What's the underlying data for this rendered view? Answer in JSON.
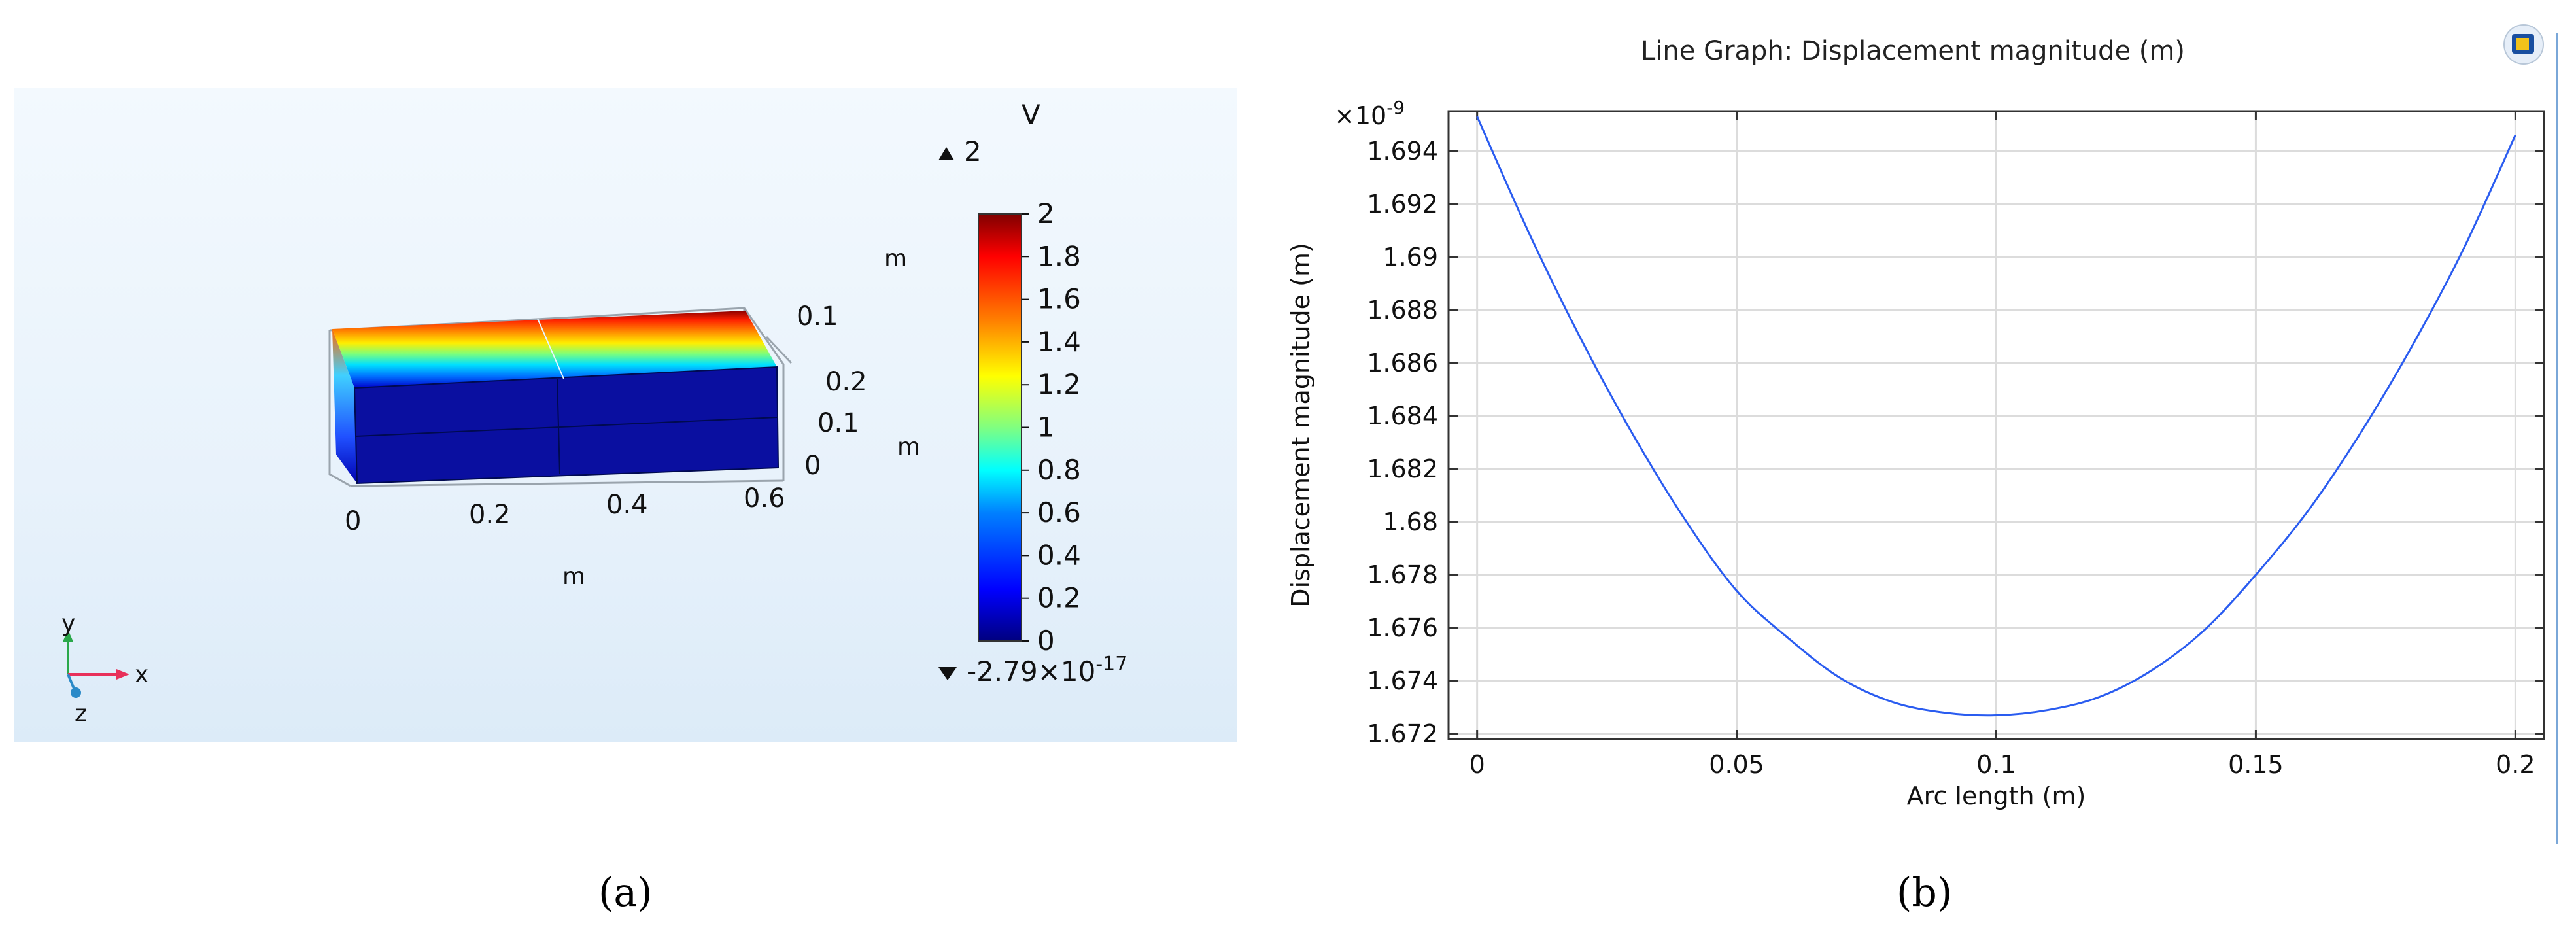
{
  "panel_a": {
    "caption": "(a)",
    "colorbar": {
      "unit": "V",
      "max_marker": "2",
      "min_marker": "-2.79×10",
      "min_marker_exp": "-17",
      "ticks": [
        "2",
        "1.8",
        "1.6",
        "1.4",
        "1.2",
        "1",
        "0.8",
        "0.6",
        "0.4",
        "0.2",
        "0"
      ],
      "colors": [
        "#00007f",
        "#0000ff",
        "#0080ff",
        "#00ffff",
        "#80ff80",
        "#ffff00",
        "#ff8000",
        "#ff0000",
        "#7f0000"
      ]
    },
    "axes_3d": {
      "x_ticks": [
        "0",
        "0.2",
        "0.4",
        "0.6"
      ],
      "x_unit": "m",
      "y_ticks": [
        "0",
        "0.1"
      ],
      "y_unit": "m",
      "z_ticks": [
        "0.1",
        "0.2"
      ],
      "z_unit": "m"
    },
    "triad": {
      "x": "x",
      "y": "y",
      "z": "z"
    }
  },
  "panel_b": {
    "caption": "(b)",
    "title": "Line Graph: Displacement magnitude (m)",
    "logo_icon": "app-logo-icon"
  },
  "chart_data": {
    "type": "line",
    "title": "Line Graph: Displacement magnitude (m)",
    "xlabel": "Arc length (m)",
    "ylabel": "Displacement magnitude (m)",
    "y_multiplier": "×10",
    "y_multiplier_exp": "-9",
    "xlim": [
      -0.0055,
      0.2055
    ],
    "ylim": [
      1.6718,
      1.6955
    ],
    "x_ticks": [
      0,
      0.05,
      0.1,
      0.15,
      0.2
    ],
    "x_tick_labels": [
      "0",
      "0.05",
      "0.1",
      "0.15",
      "0.2"
    ],
    "y_ticks": [
      1.672,
      1.674,
      1.676,
      1.678,
      1.68,
      1.682,
      1.684,
      1.686,
      1.688,
      1.69,
      1.692,
      1.694
    ],
    "y_tick_labels": [
      "1.672",
      "1.674",
      "1.676",
      "1.678",
      "1.68",
      "1.682",
      "1.684",
      "1.686",
      "1.688",
      "1.69",
      "1.692",
      "1.694"
    ],
    "grid": true,
    "series": [
      {
        "color": "#2a5cf0",
        "x": [
          0,
          0.01,
          0.02,
          0.03,
          0.04,
          0.05,
          0.06,
          0.07,
          0.08,
          0.09,
          0.1,
          0.11,
          0.12,
          0.13,
          0.14,
          0.15,
          0.16,
          0.17,
          0.18,
          0.19,
          0.2
        ],
        "y": [
          1.6953,
          1.6909,
          1.6869,
          1.6833,
          1.6801,
          1.6774,
          1.6756,
          1.6741,
          1.6732,
          1.6728,
          1.6727,
          1.6729,
          1.6734,
          1.6744,
          1.6759,
          1.678,
          1.6804,
          1.6833,
          1.6866,
          1.6903,
          1.6946
        ]
      }
    ]
  }
}
